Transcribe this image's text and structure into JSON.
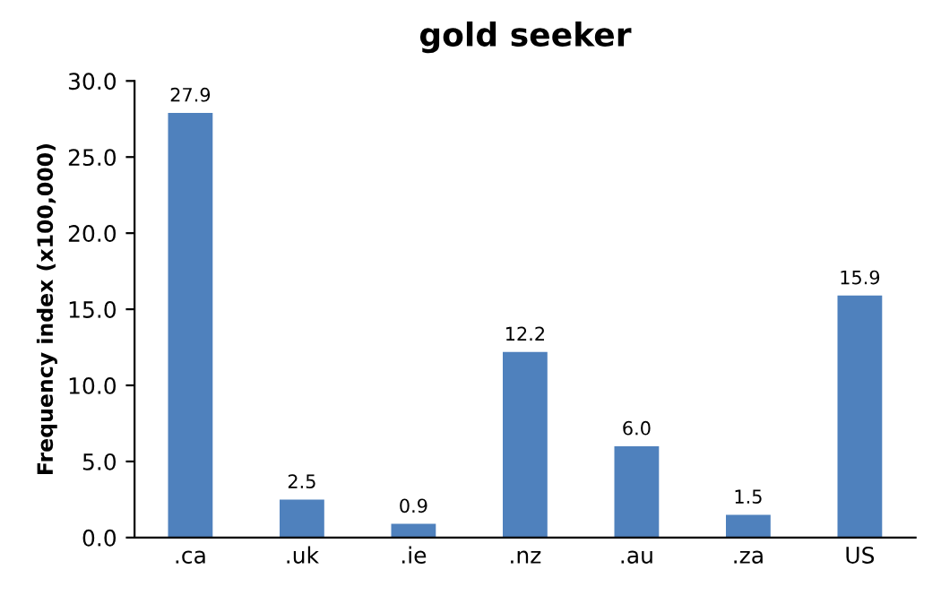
{
  "chart_data": {
    "type": "bar",
    "title": "gold seeker",
    "ylabel": "Frequency index (x100,000)",
    "categories": [
      ".ca",
      ".uk",
      ".ie",
      ".nz",
      ".au",
      ".za",
      "US"
    ],
    "values": [
      27.9,
      2.5,
      0.9,
      12.2,
      6.0,
      1.5,
      15.9
    ],
    "value_labels": [
      "27.9",
      "2.5",
      "0.9",
      "12.2",
      "6.0",
      "1.5",
      "15.9"
    ],
    "color": "#4f81bd",
    "ylim": [
      0,
      30
    ],
    "yticks": [
      {
        "value": 0,
        "label": "0.0"
      },
      {
        "value": 5,
        "label": "5.0"
      },
      {
        "value": 10,
        "label": "10.0"
      },
      {
        "value": 15,
        "label": "15.0"
      },
      {
        "value": 20,
        "label": "20.0"
      },
      {
        "value": 25,
        "label": "25.0"
      },
      {
        "value": 30,
        "label": "30.0"
      }
    ],
    "grid": false
  }
}
